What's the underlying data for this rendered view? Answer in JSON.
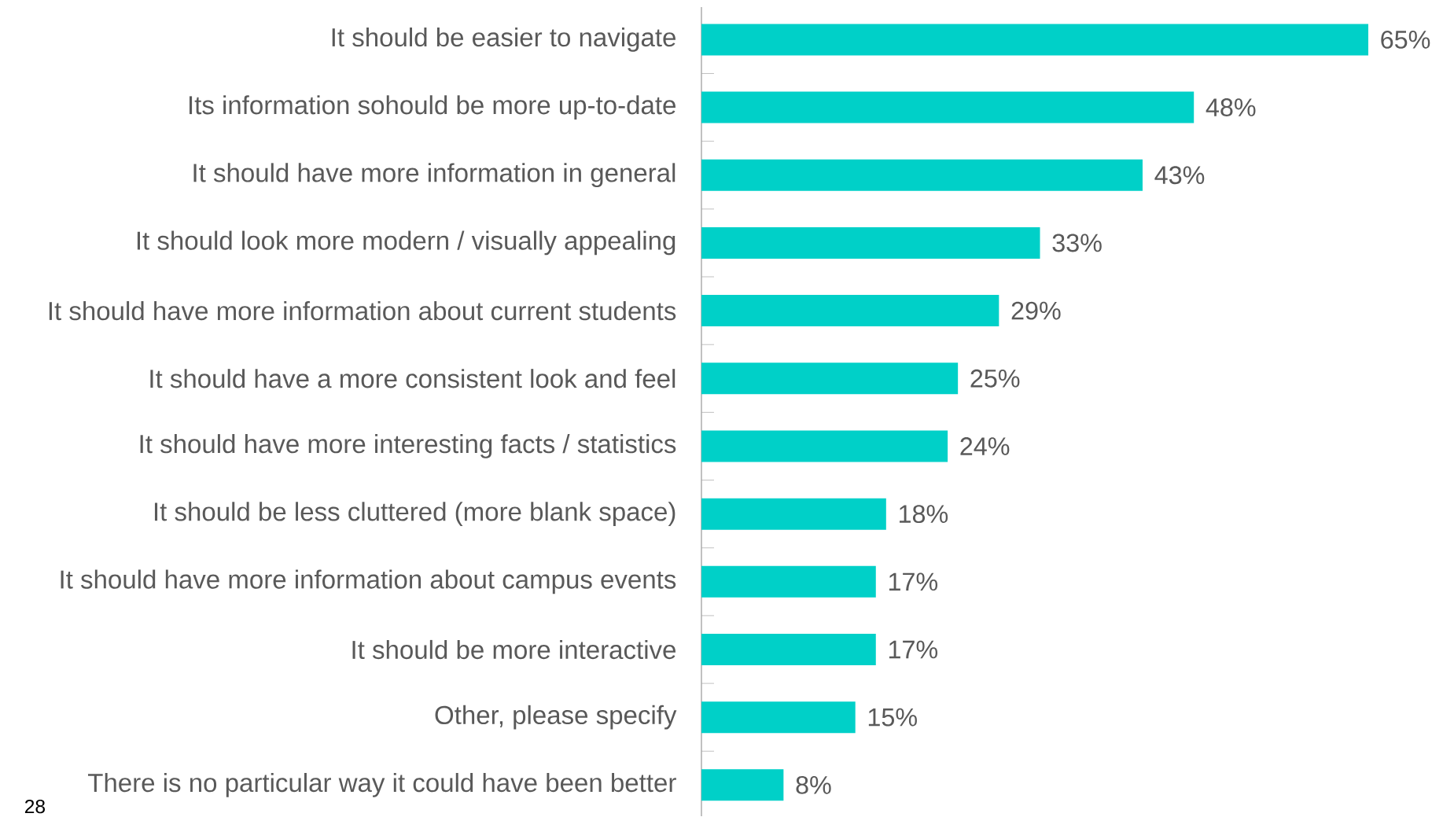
{
  "chart_data": {
    "type": "bar",
    "orientation": "horizontal",
    "categories": [
      "It should be easier to navigate",
      "Its information sohould be more up-to-date",
      "It should have more information in general",
      "It should look more modern / visually appealing",
      "It should have more information about current students",
      "It should have a more consistent look and feel",
      "It should have more interesting facts / statistics",
      "It should be less cluttered (more blank space)",
      "It should have more information about campus events",
      "It should be more interactive",
      "Other, please specify",
      "There is no particular way it could have been better"
    ],
    "values": [
      65,
      48,
      43,
      33,
      29,
      25,
      24,
      18,
      17,
      17,
      15,
      8
    ],
    "value_labels": [
      "65%",
      "48%",
      "43%",
      "33%",
      "29%",
      "25%",
      "24%",
      "18%",
      "17%",
      "17%",
      "15%",
      "8%"
    ],
    "color": "#00d0c8",
    "annotations": [
      "28"
    ]
  }
}
